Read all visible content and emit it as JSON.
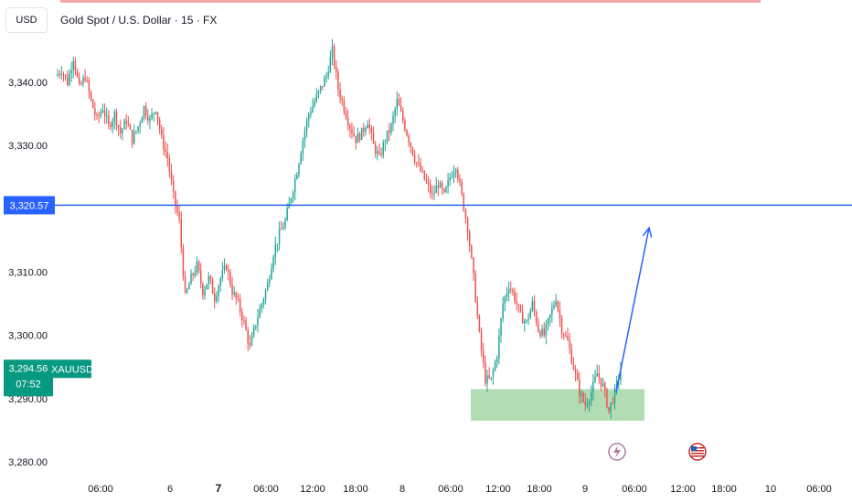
{
  "header": {
    "currency": "USD",
    "title": "Gold Spot / U.S. Dollar · 15 · FX"
  },
  "colors": {
    "up": "#26a69a",
    "down": "#ef5350",
    "level_line": "#2962ff",
    "zone_fill": "#a5d6a7",
    "price_badge": "#089981",
    "level_badge": "#2962ff"
  },
  "chart_data": {
    "type": "candlestick",
    "symbol": "XAUUSD",
    "ylim": [
      3278,
      3351
    ],
    "y_ticks": [
      3340,
      3330,
      3310,
      3300,
      3290,
      3280
    ],
    "y_tick_labels": [
      "3,340.00",
      "3,330.00",
      "3,310.00",
      "3,300.00",
      "3,290.00",
      "3,280.00"
    ],
    "x_tick_labels": [
      {
        "label": "06:00",
        "major": false
      },
      {
        "label": "6",
        "major": false
      },
      {
        "label": "7",
        "major": true
      },
      {
        "label": "06:00",
        "major": false
      },
      {
        "label": "12:00",
        "major": false
      },
      {
        "label": "18:00",
        "major": false
      },
      {
        "label": "8",
        "major": false
      },
      {
        "label": "06:00",
        "major": false
      },
      {
        "label": "12:00",
        "major": false
      },
      {
        "label": "18:00",
        "major": false
      },
      {
        "label": "9",
        "major": false
      },
      {
        "label": "06:00",
        "major": false
      },
      {
        "label": "12:00",
        "major": false
      },
      {
        "label": "18:00",
        "major": false
      },
      {
        "label": "10",
        "major": false
      },
      {
        "label": "06:00",
        "major": false
      }
    ],
    "close_path": [
      3341,
      3342,
      3340,
      3344,
      3339,
      3341,
      3337,
      3334,
      3336,
      3333,
      3335,
      3332,
      3334,
      3331,
      3333,
      3336,
      3334,
      3336,
      3331,
      3328,
      3322,
      3318,
      3306,
      3309,
      3311,
      3307,
      3309,
      3306,
      3309,
      3311,
      3307,
      3305,
      3302,
      3298,
      3302,
      3305,
      3308,
      3313,
      3316,
      3318,
      3322,
      3326,
      3331,
      3335,
      3337,
      3339,
      3341,
      3345,
      3339,
      3336,
      3333,
      3331,
      3332,
      3334,
      3330,
      3328,
      3331,
      3333,
      3337,
      3334,
      3331,
      3328,
      3326,
      3324,
      3322,
      3324,
      3322,
      3325,
      3327,
      3322,
      3317,
      3309,
      3300,
      3293,
      3293,
      3297,
      3305,
      3308,
      3306,
      3303,
      3302,
      3305,
      3301,
      3300,
      3303,
      3306,
      3301,
      3299,
      3295,
      3291,
      3289,
      3291,
      3294,
      3292,
      3288,
      3291,
      3294.56
    ],
    "levels": [
      {
        "label": "3,320.57",
        "value": 3320.57
      }
    ],
    "zones": [
      {
        "name": "demand-zone",
        "from": 3286.5,
        "to": 3291.5
      }
    ],
    "current_price": {
      "label": "3,294.56",
      "countdown": "07:52",
      "value": 3294.56
    },
    "projection": {
      "from": 3291,
      "to": 3317
    }
  },
  "events": [
    {
      "name": "lightning-event-icon"
    },
    {
      "name": "us-flag-event-icon"
    }
  ]
}
